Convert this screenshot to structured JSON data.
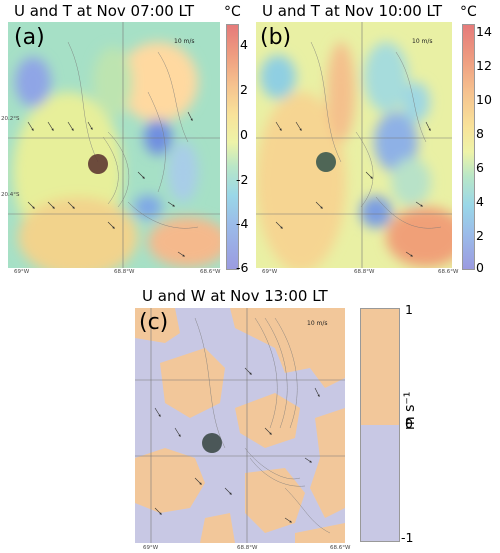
{
  "panels": [
    {
      "label": "(a)",
      "title": "U and T at Nov 07:00 LT",
      "unit": "°C",
      "colorbar_ticks": [
        "4",
        "2",
        "0",
        "-2",
        "-4",
        "-6"
      ],
      "x_ticks": [
        "69°W",
        "68.8°W",
        "68.6°W"
      ],
      "y_ticks": [
        "20.2°S",
        "20.4°S"
      ],
      "scale": "10 m/s"
    },
    {
      "label": "(b)",
      "title": "U and T at Nov 10:00 LT",
      "unit": "°C",
      "colorbar_ticks": [
        "14",
        "12",
        "10",
        "8",
        "6",
        "4",
        "2",
        "0"
      ],
      "x_ticks": [
        "69°W",
        "68.8°W",
        "68.6°W"
      ],
      "scale": "10 m/s"
    },
    {
      "label": "(c)",
      "title": "U and W at Nov 13:00 LT",
      "unit": "m s⁻¹",
      "colorbar_ticks": [
        "1",
        "0",
        "-1"
      ],
      "x_ticks": [
        "69°W",
        "68.8°W",
        "68.6°W"
      ],
      "scale": "10 m/s"
    }
  ],
  "colors": {
    "warm": "#f2c79a",
    "cool": "#c8c8e4",
    "marker": "#3d4a48"
  }
}
